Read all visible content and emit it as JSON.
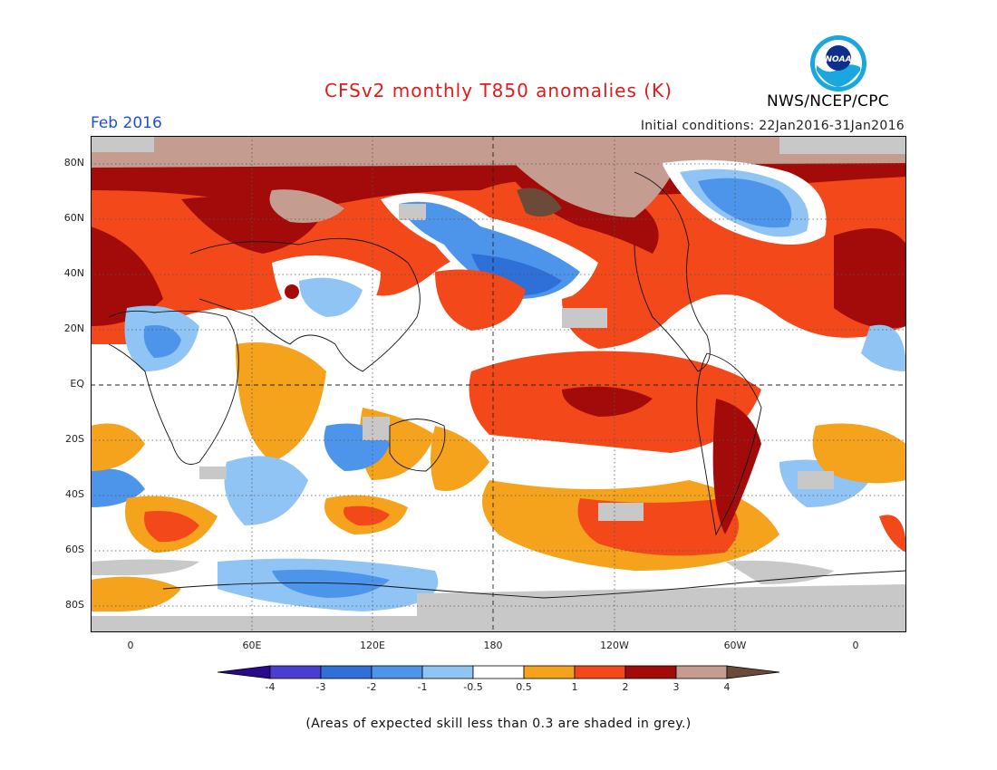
{
  "header": {
    "title": "CFSv2 monthly T850 anomalies (K)",
    "month": "Feb 2016",
    "initial_conditions": "Initial conditions: 22Jan2016-31Jan2016",
    "agency": "NWS/NCEP/CPC",
    "logo_text": "NOAA"
  },
  "map": {
    "lat_labels": [
      "80N",
      "60N",
      "40N",
      "20N",
      "EQ",
      "20S",
      "40S",
      "60S",
      "80S"
    ],
    "lon_labels": [
      "0",
      "60E",
      "120E",
      "180",
      "120W",
      "60W",
      "0"
    ]
  },
  "colorbar": {
    "labels": [
      "-4",
      "-3",
      "-2",
      "-1",
      "-0.5",
      "0.5",
      "1",
      "2",
      "3",
      "4"
    ],
    "colors": [
      "#2a0a8c",
      "#4a3ed0",
      "#2e6fd8",
      "#4d95ea",
      "#8fc4f5",
      "#ffffff",
      "#f5a21c",
      "#f2481a",
      "#a30b0b",
      "#c49c90",
      "#6b4a3a"
    ],
    "low_skill_color": "#c8c8c8"
  },
  "footnote": "(Areas of expected skill less than 0.3 are shaded in grey.)"
}
